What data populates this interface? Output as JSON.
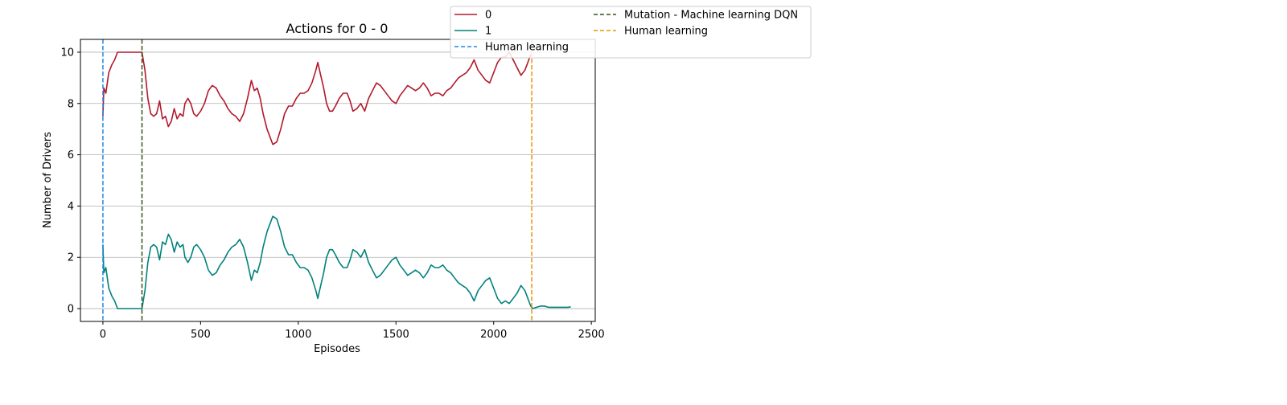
{
  "chart_data": {
    "type": "line",
    "title": "Actions for 0 - 0",
    "xlabel": "Episodes",
    "ylabel": "Number of Drivers",
    "xlim": [
      -115,
      2520
    ],
    "ylim": [
      -0.5,
      10.5
    ],
    "xticks": [
      0,
      500,
      1000,
      1500,
      2000,
      2500
    ],
    "yticks": [
      0,
      2,
      4,
      6,
      8,
      10
    ],
    "xtick_labels": [
      "0",
      "500",
      "1000",
      "1500",
      "2000",
      "2500"
    ],
    "ytick_labels": [
      "0",
      "2",
      "4",
      "6",
      "8",
      "10"
    ],
    "grid": "horizontal",
    "legend_position": "upper right, outside plot",
    "series": [
      {
        "name": "0",
        "color": "#b2182b",
        "points": [
          [
            0,
            7.5
          ],
          [
            5,
            8.6
          ],
          [
            15,
            8.4
          ],
          [
            30,
            9.2
          ],
          [
            45,
            9.5
          ],
          [
            60,
            9.7
          ],
          [
            75,
            10
          ],
          [
            100,
            10
          ],
          [
            150,
            10
          ],
          [
            200,
            10
          ],
          [
            215,
            9.3
          ],
          [
            230,
            8.2
          ],
          [
            245,
            7.6
          ],
          [
            260,
            7.5
          ],
          [
            275,
            7.6
          ],
          [
            290,
            8.1
          ],
          [
            305,
            7.4
          ],
          [
            320,
            7.5
          ],
          [
            335,
            7.1
          ],
          [
            350,
            7.3
          ],
          [
            365,
            7.8
          ],
          [
            380,
            7.4
          ],
          [
            395,
            7.6
          ],
          [
            410,
            7.5
          ],
          [
            420,
            8.0
          ],
          [
            435,
            8.2
          ],
          [
            450,
            8.0
          ],
          [
            465,
            7.6
          ],
          [
            480,
            7.5
          ],
          [
            500,
            7.7
          ],
          [
            520,
            8.0
          ],
          [
            540,
            8.5
          ],
          [
            560,
            8.7
          ],
          [
            580,
            8.6
          ],
          [
            600,
            8.3
          ],
          [
            620,
            8.1
          ],
          [
            640,
            7.8
          ],
          [
            660,
            7.6
          ],
          [
            680,
            7.5
          ],
          [
            700,
            7.3
          ],
          [
            720,
            7.6
          ],
          [
            740,
            8.2
          ],
          [
            760,
            8.9
          ],
          [
            775,
            8.5
          ],
          [
            790,
            8.6
          ],
          [
            805,
            8.2
          ],
          [
            820,
            7.6
          ],
          [
            840,
            7.0
          ],
          [
            855,
            6.7
          ],
          [
            870,
            6.4
          ],
          [
            890,
            6.5
          ],
          [
            910,
            7.0
          ],
          [
            930,
            7.6
          ],
          [
            950,
            7.9
          ],
          [
            970,
            7.9
          ],
          [
            990,
            8.2
          ],
          [
            1010,
            8.4
          ],
          [
            1030,
            8.4
          ],
          [
            1050,
            8.5
          ],
          [
            1070,
            8.8
          ],
          [
            1090,
            9.3
          ],
          [
            1100,
            9.6
          ],
          [
            1115,
            9.1
          ],
          [
            1130,
            8.6
          ],
          [
            1145,
            8.0
          ],
          [
            1160,
            7.7
          ],
          [
            1175,
            7.7
          ],
          [
            1190,
            7.9
          ],
          [
            1210,
            8.2
          ],
          [
            1230,
            8.4
          ],
          [
            1250,
            8.4
          ],
          [
            1265,
            8.1
          ],
          [
            1280,
            7.7
          ],
          [
            1300,
            7.8
          ],
          [
            1320,
            8.0
          ],
          [
            1340,
            7.7
          ],
          [
            1360,
            8.2
          ],
          [
            1380,
            8.5
          ],
          [
            1400,
            8.8
          ],
          [
            1420,
            8.7
          ],
          [
            1440,
            8.5
          ],
          [
            1460,
            8.3
          ],
          [
            1480,
            8.1
          ],
          [
            1500,
            8.0
          ],
          [
            1520,
            8.3
          ],
          [
            1540,
            8.5
          ],
          [
            1560,
            8.7
          ],
          [
            1580,
            8.6
          ],
          [
            1600,
            8.5
          ],
          [
            1620,
            8.6
          ],
          [
            1640,
            8.8
          ],
          [
            1660,
            8.6
          ],
          [
            1680,
            8.3
          ],
          [
            1700,
            8.4
          ],
          [
            1720,
            8.4
          ],
          [
            1740,
            8.3
          ],
          [
            1760,
            8.5
          ],
          [
            1780,
            8.6
          ],
          [
            1800,
            8.8
          ],
          [
            1820,
            9.0
          ],
          [
            1840,
            9.1
          ],
          [
            1860,
            9.2
          ],
          [
            1880,
            9.4
          ],
          [
            1900,
            9.7
          ],
          [
            1920,
            9.3
          ],
          [
            1940,
            9.1
          ],
          [
            1960,
            8.9
          ],
          [
            1980,
            8.8
          ],
          [
            2000,
            9.2
          ],
          [
            2020,
            9.6
          ],
          [
            2040,
            9.8
          ],
          [
            2060,
            9.8
          ],
          [
            2080,
            10.0
          ],
          [
            2100,
            9.7
          ],
          [
            2120,
            9.4
          ],
          [
            2140,
            9.1
          ],
          [
            2160,
            9.3
          ],
          [
            2180,
            9.7
          ],
          [
            2190,
            9.9
          ]
        ]
      },
      {
        "name": "1",
        "color": "#00817b",
        "points": [
          [
            0,
            2.5
          ],
          [
            5,
            1.4
          ],
          [
            15,
            1.6
          ],
          [
            30,
            0.8
          ],
          [
            45,
            0.5
          ],
          [
            60,
            0.3
          ],
          [
            75,
            0
          ],
          [
            100,
            0
          ],
          [
            150,
            0
          ],
          [
            200,
            0
          ],
          [
            215,
            0.7
          ],
          [
            230,
            1.8
          ],
          [
            245,
            2.4
          ],
          [
            260,
            2.5
          ],
          [
            275,
            2.4
          ],
          [
            290,
            1.9
          ],
          [
            305,
            2.6
          ],
          [
            320,
            2.5
          ],
          [
            335,
            2.9
          ],
          [
            350,
            2.7
          ],
          [
            365,
            2.2
          ],
          [
            380,
            2.6
          ],
          [
            395,
            2.4
          ],
          [
            410,
            2.5
          ],
          [
            420,
            2.0
          ],
          [
            435,
            1.8
          ],
          [
            450,
            2.0
          ],
          [
            465,
            2.4
          ],
          [
            480,
            2.5
          ],
          [
            500,
            2.3
          ],
          [
            520,
            2.0
          ],
          [
            540,
            1.5
          ],
          [
            560,
            1.3
          ],
          [
            580,
            1.4
          ],
          [
            600,
            1.7
          ],
          [
            620,
            1.9
          ],
          [
            640,
            2.2
          ],
          [
            660,
            2.4
          ],
          [
            680,
            2.5
          ],
          [
            700,
            2.7
          ],
          [
            720,
            2.4
          ],
          [
            740,
            1.8
          ],
          [
            760,
            1.1
          ],
          [
            775,
            1.5
          ],
          [
            790,
            1.4
          ],
          [
            805,
            1.8
          ],
          [
            820,
            2.4
          ],
          [
            840,
            3.0
          ],
          [
            855,
            3.3
          ],
          [
            870,
            3.6
          ],
          [
            890,
            3.5
          ],
          [
            910,
            3.0
          ],
          [
            930,
            2.4
          ],
          [
            950,
            2.1
          ],
          [
            970,
            2.1
          ],
          [
            990,
            1.8
          ],
          [
            1010,
            1.6
          ],
          [
            1030,
            1.6
          ],
          [
            1050,
            1.5
          ],
          [
            1070,
            1.2
          ],
          [
            1090,
            0.7
          ],
          [
            1100,
            0.4
          ],
          [
            1115,
            0.9
          ],
          [
            1130,
            1.4
          ],
          [
            1145,
            2.0
          ],
          [
            1160,
            2.3
          ],
          [
            1175,
            2.3
          ],
          [
            1190,
            2.1
          ],
          [
            1210,
            1.8
          ],
          [
            1230,
            1.6
          ],
          [
            1250,
            1.6
          ],
          [
            1265,
            1.9
          ],
          [
            1280,
            2.3
          ],
          [
            1300,
            2.2
          ],
          [
            1320,
            2.0
          ],
          [
            1340,
            2.3
          ],
          [
            1360,
            1.8
          ],
          [
            1380,
            1.5
          ],
          [
            1400,
            1.2
          ],
          [
            1420,
            1.3
          ],
          [
            1440,
            1.5
          ],
          [
            1460,
            1.7
          ],
          [
            1480,
            1.9
          ],
          [
            1500,
            2.0
          ],
          [
            1520,
            1.7
          ],
          [
            1540,
            1.5
          ],
          [
            1560,
            1.3
          ],
          [
            1580,
            1.4
          ],
          [
            1600,
            1.5
          ],
          [
            1620,
            1.4
          ],
          [
            1640,
            1.2
          ],
          [
            1660,
            1.4
          ],
          [
            1680,
            1.7
          ],
          [
            1700,
            1.6
          ],
          [
            1720,
            1.6
          ],
          [
            1740,
            1.7
          ],
          [
            1760,
            1.5
          ],
          [
            1780,
            1.4
          ],
          [
            1800,
            1.2
          ],
          [
            1820,
            1.0
          ],
          [
            1840,
            0.9
          ],
          [
            1860,
            0.8
          ],
          [
            1880,
            0.6
          ],
          [
            1900,
            0.3
          ],
          [
            1920,
            0.7
          ],
          [
            1940,
            0.9
          ],
          [
            1960,
            1.1
          ],
          [
            1980,
            1.2
          ],
          [
            2000,
            0.8
          ],
          [
            2020,
            0.4
          ],
          [
            2040,
            0.2
          ],
          [
            2060,
            0.3
          ],
          [
            2080,
            0.2
          ],
          [
            2100,
            0.4
          ],
          [
            2120,
            0.6
          ],
          [
            2140,
            0.9
          ],
          [
            2160,
            0.7
          ],
          [
            2180,
            0.3
          ],
          [
            2190,
            0.1
          ],
          [
            2200,
            0.0
          ],
          [
            2220,
            0.05
          ],
          [
            2240,
            0.1
          ],
          [
            2260,
            0.1
          ],
          [
            2280,
            0.05
          ],
          [
            2300,
            0.05
          ],
          [
            2320,
            0.05
          ],
          [
            2340,
            0.05
          ],
          [
            2360,
            0.05
          ],
          [
            2380,
            0.05
          ],
          [
            2395,
            0.07
          ]
        ]
      }
    ],
    "vlines": [
      {
        "label": "Human learning",
        "x": 0,
        "color": "#1e88e5",
        "style": "dashed"
      },
      {
        "label": "Mutation - Machine learning DQN",
        "x": 200,
        "color": "#33521a",
        "style": "dashed"
      },
      {
        "label": "Human learning",
        "x": 2195,
        "color": "#e69500",
        "style": "dashed"
      }
    ],
    "legend": [
      {
        "label": "0",
        "color": "#b2182b",
        "style": "solid"
      },
      {
        "label": "Mutation - Machine learning DQN",
        "color": "#33521a",
        "style": "dashed"
      },
      {
        "label": "1",
        "color": "#00817b",
        "style": "solid"
      },
      {
        "label": "Human learning",
        "color": "#e69500",
        "style": "dashed"
      },
      {
        "label": "Human learning",
        "color": "#1e88e5",
        "style": "dashed"
      }
    ]
  }
}
